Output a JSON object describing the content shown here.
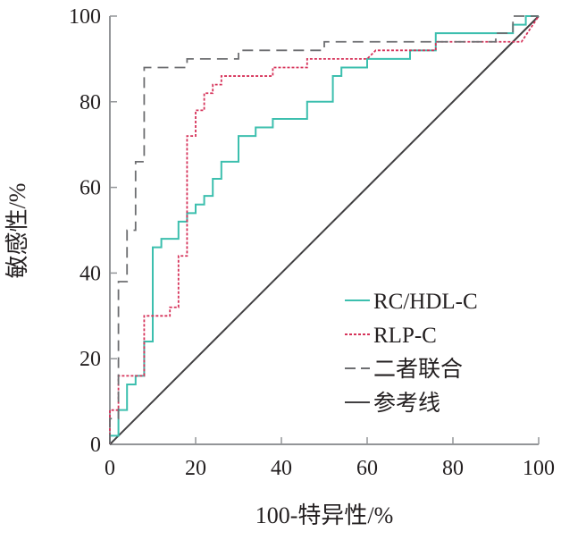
{
  "chart_data": {
    "type": "line",
    "title": "",
    "xlabel": "100-特异性/%",
    "ylabel": "敏感性/%",
    "xlim": [
      0,
      100
    ],
    "ylim": [
      0,
      100
    ],
    "xticks": [
      "0",
      "20",
      "40",
      "60",
      "80",
      "100"
    ],
    "yticks": [
      "0",
      "20",
      "40",
      "60",
      "80",
      "100"
    ],
    "grid": false,
    "legend_position": "bottom-right",
    "series": [
      {
        "name": "RC/HDL-C",
        "color": "#3cbfae",
        "dash": "solid",
        "x": [
          0,
          0,
          2,
          2,
          4,
          4,
          6,
          6,
          8,
          8,
          10,
          10,
          12,
          12,
          16,
          16,
          18,
          18,
          20,
          20,
          22,
          22,
          24,
          24,
          26,
          26,
          30,
          30,
          34,
          34,
          38,
          38,
          46,
          46,
          52,
          52,
          54,
          54,
          60,
          60,
          70,
          70,
          76,
          76,
          94,
          94,
          97,
          97,
          100
        ],
        "y": [
          0,
          2,
          2,
          8,
          8,
          14,
          14,
          16,
          16,
          24,
          24,
          46,
          46,
          48,
          48,
          52,
          52,
          54,
          54,
          56,
          56,
          58,
          58,
          62,
          62,
          66,
          66,
          72,
          72,
          74,
          74,
          76,
          76,
          80,
          80,
          86,
          86,
          88,
          88,
          90,
          90,
          92,
          92,
          96,
          96,
          98,
          98,
          100,
          100
        ]
      },
      {
        "name": "RLP-C",
        "color": "#d6335a",
        "dash": "short",
        "x": [
          0,
          0,
          2,
          2,
          8,
          8,
          14,
          14,
          16,
          16,
          18,
          18,
          20,
          20,
          22,
          22,
          24,
          24,
          26,
          26,
          38,
          38,
          46,
          46,
          60,
          62,
          76,
          76,
          96,
          100
        ],
        "y": [
          0,
          8,
          8,
          16,
          16,
          30,
          30,
          32,
          32,
          44,
          44,
          72,
          72,
          78,
          78,
          82,
          82,
          84,
          84,
          86,
          86,
          88,
          88,
          90,
          90,
          92,
          92,
          94,
          94,
          100
        ]
      },
      {
        "name": "二者联合",
        "color": "#6d6e71",
        "dash": "long",
        "x": [
          0,
          0,
          2,
          2,
          4,
          4,
          6,
          6,
          8,
          8,
          18,
          18,
          30,
          30,
          50,
          50,
          90,
          90,
          94,
          94,
          100
        ],
        "y": [
          0,
          6,
          6,
          38,
          38,
          50,
          50,
          66,
          66,
          88,
          88,
          90,
          90,
          92,
          92,
          94,
          94,
          96,
          96,
          100,
          100
        ]
      },
      {
        "name": "参考线",
        "color": "#414042",
        "dash": "solid",
        "x": [
          0,
          100
        ],
        "y": [
          0,
          100
        ]
      }
    ]
  }
}
